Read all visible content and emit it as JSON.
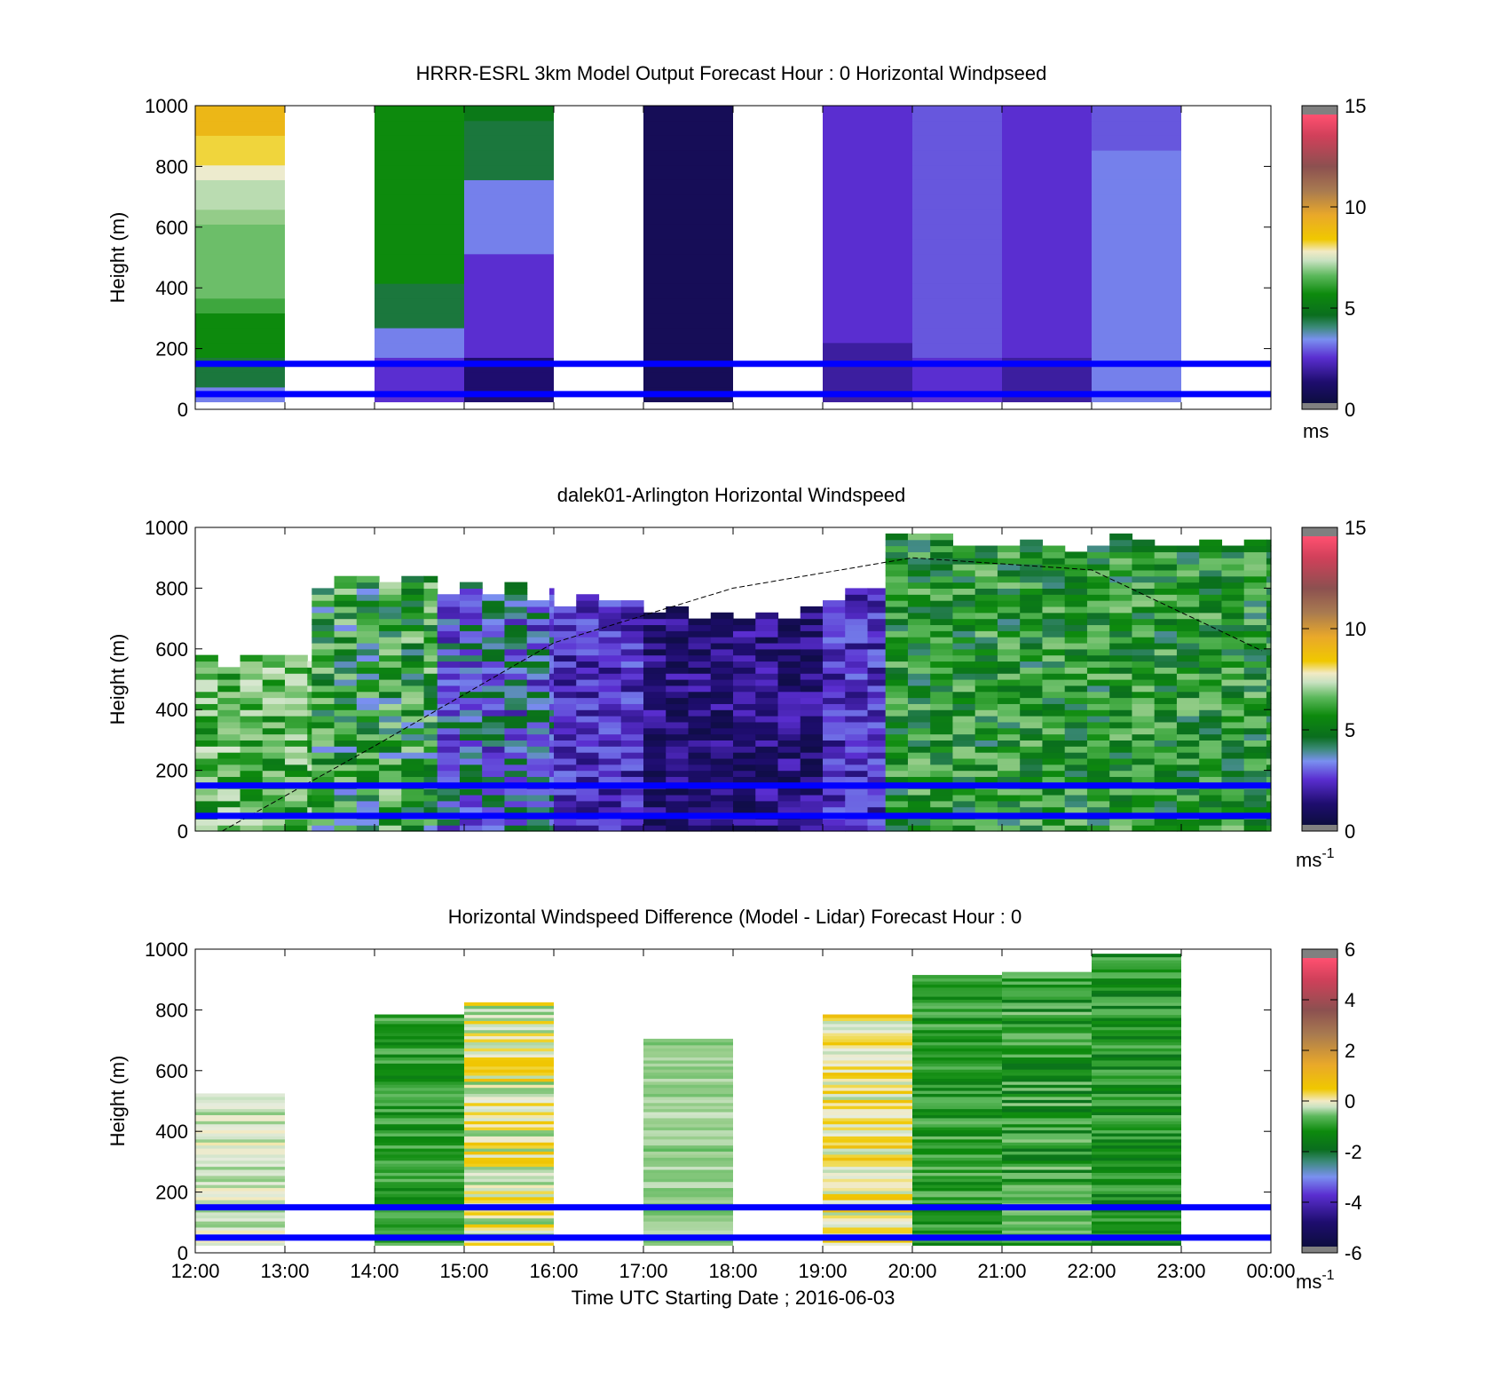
{
  "figure": {
    "shared_xlabel": "Time UTC  Starting Date ; 2016-06-03",
    "line_color": "#0000ff"
  },
  "colormaps": {
    "speed": [
      "#1a1a1a",
      "#0d0d40",
      "#1e0d6e",
      "#3a10b0",
      "#5a2ed0",
      "#6a5fe0",
      "#7a90f0",
      "#80b0ff",
      "#3c8a7a",
      "#0a6e1e",
      "#0d8a0d",
      "#2aa52a",
      "#5cb85c",
      "#9ccf8f",
      "#c9e2c2",
      "#e6ecdd",
      "#f2eac4",
      "#f0dc5a",
      "#f0c800",
      "#e9a82a",
      "#a87a50",
      "#8c5050",
      "#d0405a",
      "#ff5070",
      "#808080"
    ]
  },
  "chart_data": [
    {
      "type": "heatmap",
      "title": "HRRR-ESRL 3km Model Output   Forecast Hour : 0 Horizontal Windpseed",
      "xlabel": "",
      "ylabel": "Height (m)",
      "xlim": [
        12,
        24
      ],
      "ylim": [
        0,
        1000
      ],
      "yticks": [
        "0",
        "200",
        "400",
        "600",
        "800",
        "1000"
      ],
      "colorbar": {
        "range": [
          0,
          15
        ],
        "ticks": [
          "0",
          "5",
          "10",
          "15"
        ],
        "unit": "ms",
        "unit_sup": ""
      },
      "hlines": [
        50,
        150
      ],
      "hour_columns": [
        {
          "hour": 12,
          "values": [
            3,
            4,
            4,
            5,
            5,
            5,
            5.5,
            6,
            6,
            6,
            6,
            6,
            6.5,
            7,
            7,
            8,
            9,
            9,
            10,
            10
          ]
        },
        {
          "hour": 13,
          "values": null
        },
        {
          "hour": 14,
          "values": [
            2,
            2,
            2,
            3,
            3,
            4,
            4,
            4,
            5,
            5,
            5,
            5,
            5,
            5,
            5,
            5,
            5,
            5,
            5,
            5
          ]
        },
        {
          "hour": 15,
          "values": [
            1,
            1,
            1,
            2,
            2,
            2,
            2,
            2,
            2,
            2,
            3,
            3,
            3,
            3,
            3,
            4,
            4,
            4,
            4,
            4.5
          ]
        },
        {
          "hour": 16,
          "values": null
        },
        {
          "hour": 17,
          "values": [
            0.5,
            0.5,
            0.5,
            0.5,
            0.5,
            0.5,
            0.5,
            0.5,
            0.5,
            0.5,
            0.5,
            0.5,
            0.5,
            0.5,
            0.5,
            0.5,
            0.5,
            0.5,
            0.5,
            0.5
          ]
        },
        {
          "hour": 18,
          "values": null
        },
        {
          "hour": 19,
          "values": [
            1.5,
            1.5,
            1.5,
            1.5,
            2,
            2,
            2,
            2,
            2,
            2,
            2,
            2,
            2,
            2,
            2,
            2,
            2,
            2,
            2,
            2
          ]
        },
        {
          "hour": 20,
          "values": [
            2,
            2,
            2,
            2.5,
            2.5,
            2.5,
            2.5,
            2.5,
            2.5,
            2.5,
            2.5,
            2.5,
            2.5,
            2.5,
            2.5,
            2.5,
            2.5,
            2.5,
            2.5,
            2.5
          ]
        },
        {
          "hour": 21,
          "values": [
            1.5,
            1.5,
            1.5,
            2,
            2,
            2,
            2,
            2,
            2,
            2,
            2,
            2,
            2,
            2,
            2,
            2,
            2,
            2,
            2,
            2
          ]
        },
        {
          "hour": 22,
          "values": [
            3,
            3,
            3,
            3,
            3,
            3,
            3,
            3,
            3,
            3,
            3,
            3,
            3,
            3,
            3,
            3,
            3,
            2.5,
            2.5,
            2.5
          ]
        },
        {
          "hour": 23,
          "values": null
        }
      ]
    },
    {
      "type": "heatmap",
      "title": "dalek01-Arlington  Horizontal Windspeed",
      "xlabel": "",
      "ylabel": "Height (m)",
      "xlim": [
        12,
        24
      ],
      "ylim": [
        0,
        1000
      ],
      "yticks": [
        "0",
        "200",
        "400",
        "600",
        "800",
        "1000"
      ],
      "colorbar": {
        "range": [
          0,
          15
        ],
        "ticks": [
          "0",
          "5",
          "10",
          "15"
        ],
        "unit": "ms",
        "unit_sup": "-1"
      },
      "hlines": [
        50,
        150
      ],
      "blh_curve": {
        "x": [
          12.3,
          14,
          16,
          18,
          20,
          22,
          24
        ],
        "y": [
          0,
          280,
          620,
          800,
          900,
          860,
          580
        ]
      },
      "segments": [
        {
          "start": 12.0,
          "end": 13.3,
          "top": 600,
          "center": 6,
          "spread": 1.5
        },
        {
          "start": 13.3,
          "end": 14.7,
          "top": 870,
          "center": 5,
          "spread": 2.0
        },
        {
          "start": 14.7,
          "end": 16.0,
          "top": 830,
          "center": 3,
          "spread": 1.5
        },
        {
          "start": 16.0,
          "end": 17.0,
          "top": 800,
          "center": 2,
          "spread": 1.0
        },
        {
          "start": 17.0,
          "end": 19.0,
          "top": 760,
          "center": 1,
          "spread": 1.0
        },
        {
          "start": 19.0,
          "end": 19.7,
          "top": 820,
          "center": 2,
          "spread": 1.0
        },
        {
          "start": 19.7,
          "end": 24.0,
          "top": 990,
          "center": 5,
          "spread": 1.5
        }
      ]
    },
    {
      "type": "heatmap",
      "title": "Horizontal Windspeed Difference (Model - Lidar) Forecast Hour : 0",
      "xlabel": "Time UTC  Starting Date ; 2016-06-03",
      "ylabel": "Height (m)",
      "xlim": [
        12,
        24
      ],
      "ylim": [
        0,
        1000
      ],
      "yticks": [
        "0",
        "200",
        "400",
        "600",
        "800",
        "1000"
      ],
      "xticks": [
        "12:00",
        "13:00",
        "14:00",
        "15:00",
        "16:00",
        "17:00",
        "18:00",
        "19:00",
        "20:00",
        "21:00",
        "22:00",
        "23:00",
        "00:00"
      ],
      "colorbar": {
        "range": [
          -6,
          6
        ],
        "ticks": [
          "-6",
          "-4",
          "-2",
          "0",
          "2",
          "4",
          "6"
        ],
        "unit": "ms",
        "unit_sup": "-1"
      },
      "hlines": [
        50,
        150
      ],
      "hour_columns": [
        {
          "hour": 12,
          "top": 530,
          "center": -0.5,
          "spread": 0.8
        },
        {
          "hour": 13,
          "top": null
        },
        {
          "hour": 14,
          "top": 790,
          "center": -2,
          "spread": 0.6
        },
        {
          "hour": 15,
          "top": 830,
          "center": 0,
          "spread": 1.5
        },
        {
          "hour": 16,
          "top": null
        },
        {
          "hour": 17,
          "top": 710,
          "center": -1,
          "spread": 0.6
        },
        {
          "hour": 18,
          "top": null
        },
        {
          "hour": 19,
          "top": 790,
          "center": 0.3,
          "spread": 1.2
        },
        {
          "hour": 20,
          "top": 920,
          "center": -2,
          "spread": 0.7
        },
        {
          "hour": 21,
          "top": 930,
          "center": -2,
          "spread": 1.0
        },
        {
          "hour": 22,
          "top": 990,
          "center": -2.2,
          "spread": 0.7
        },
        {
          "hour": 23,
          "top": null
        }
      ]
    }
  ]
}
